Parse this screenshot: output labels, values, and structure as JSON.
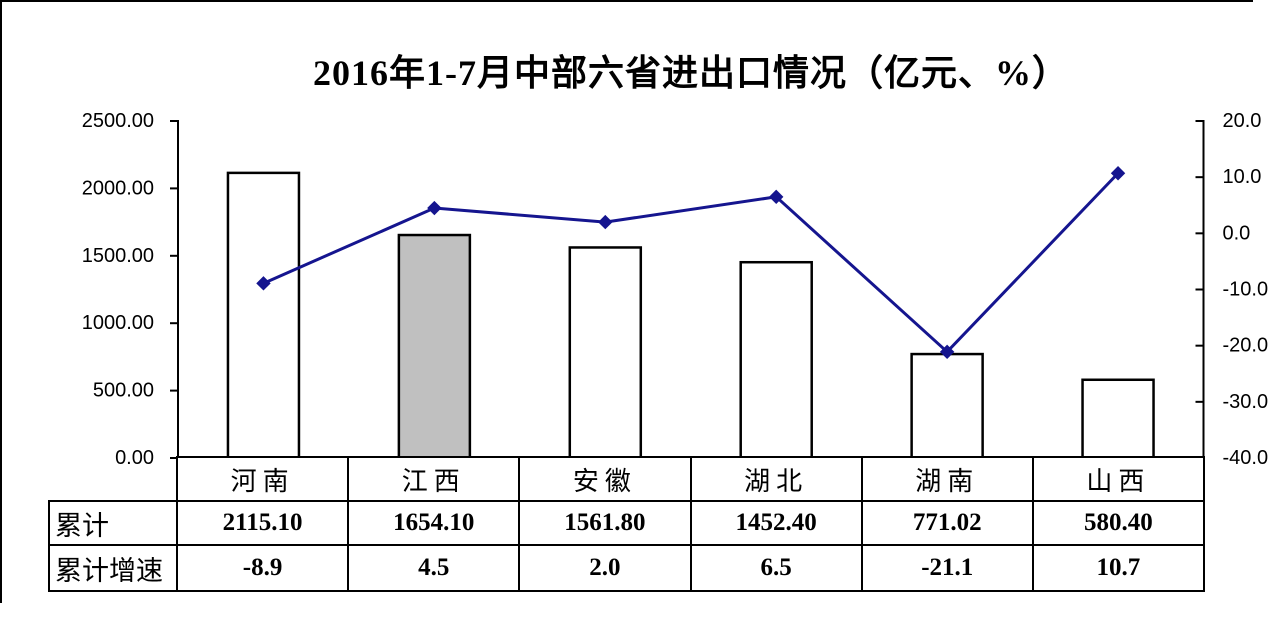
{
  "chart_data": {
    "type": "combo",
    "title": "2016年1-7月中部六省进出口情况（亿元、%）",
    "categories": [
      "河南",
      "江西",
      "安徽",
      "湖北",
      "湖南",
      "山西"
    ],
    "series": [
      {
        "name": "累计",
        "type": "bar",
        "axis": "left",
        "values": [
          2115.1,
          1654.1,
          1561.8,
          1452.4,
          771.02,
          580.4
        ],
        "bar_fills": [
          "#FFFFFF",
          "#C0C0C0",
          "#FFFFFF",
          "#FFFFFF",
          "#FFFFFF",
          "#FFFFFF"
        ],
        "bar_border_color": "#000000"
      },
      {
        "name": "累计增速",
        "type": "line",
        "axis": "right",
        "values": [
          -8.9,
          4.5,
          2.0,
          6.5,
          -21.1,
          10.7
        ],
        "color": "#15158f",
        "marker": "diamond"
      }
    ],
    "left_axis": {
      "min": 0,
      "max": 2500,
      "step": 500,
      "tick_labels": [
        "2500.00",
        "2000.00",
        "1500.00",
        "1000.00",
        "500.00",
        "0.00"
      ]
    },
    "right_axis": {
      "min": -40,
      "max": 20,
      "step": 10,
      "tick_labels": [
        "20.0",
        "10.0",
        "0.0",
        "-10.0",
        "-20.0",
        "-30.0",
        "-40.0"
      ]
    },
    "grid": false,
    "legend": "none",
    "axis_color": "#000000"
  },
  "table": {
    "row_headers": [
      "累计",
      "累计增速"
    ],
    "rows": [
      [
        "2115.10",
        "1654.10",
        "1561.80",
        "1452.40",
        "771.02",
        "580.40"
      ],
      [
        "-8.9",
        "4.5",
        "2.0",
        "6.5",
        "-21.1",
        "10.7"
      ]
    ]
  }
}
